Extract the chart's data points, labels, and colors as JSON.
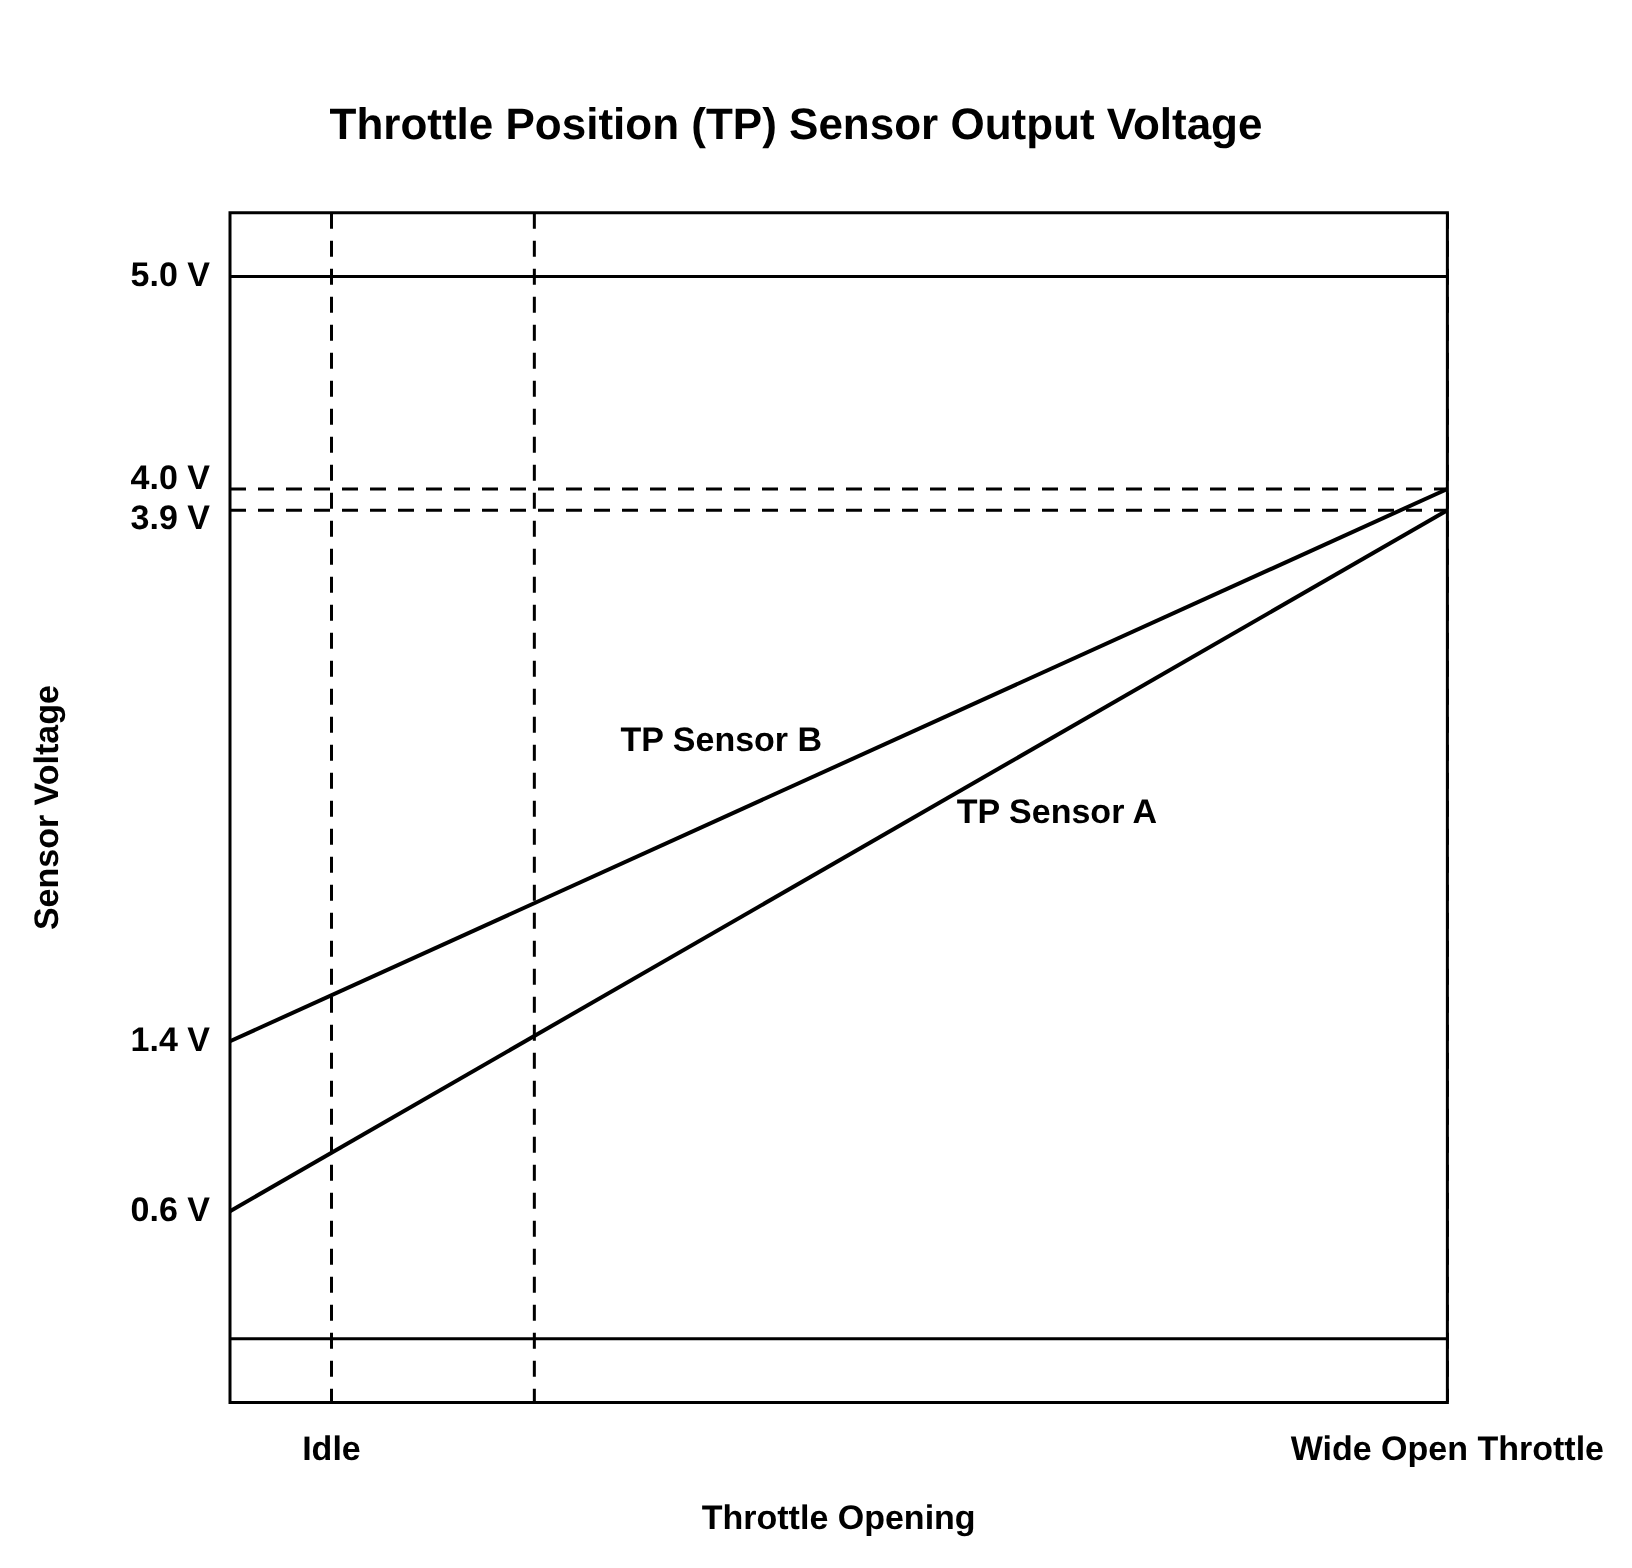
{
  "chart_data": {
    "type": "line",
    "title": "Throttle Position (TP) Sensor Output Voltage",
    "xlabel": "Throttle Opening",
    "ylabel": "Sensor Voltage",
    "categories": [
      null,
      "Idle",
      null,
      null,
      null,
      null,
      null,
      null,
      null,
      null,
      null,
      null,
      "Wide Open Throttle"
    ],
    "series": [
      {
        "name": "TP Sensor B",
        "color": "#000000",
        "values": [
          1.4,
          null,
          null,
          null,
          null,
          null,
          null,
          null,
          null,
          null,
          null,
          null,
          4.0
        ]
      },
      {
        "name": "TP Sensor A",
        "color": "#000000",
        "values": [
          0.6,
          null,
          null,
          null,
          null,
          null,
          null,
          null,
          null,
          null,
          null,
          null,
          3.9
        ]
      }
    ],
    "ylim": [
      -0.3,
      5.3
    ],
    "yticks": [
      {
        "value": 0.6,
        "label": "0.6 V"
      },
      {
        "value": 1.4,
        "label": "1.4 V"
      },
      {
        "value": 3.9,
        "label": "3.9 V"
      },
      {
        "value": 4.0,
        "label": "4.0 V"
      },
      {
        "value": 5.0,
        "label": "5.0 V"
      }
    ],
    "ref_lines": [
      {
        "axis": "y",
        "value": 4.0,
        "line_style": "dashed",
        "color": "#000000"
      },
      {
        "axis": "y",
        "value": 3.9,
        "line_style": "dashed",
        "color": "#000000"
      },
      {
        "axis": "y",
        "value": 5.0,
        "line_style": "solid",
        "color": "#000000"
      },
      {
        "axis": "y",
        "value": 0,
        "line_style": "solid",
        "color": "#000000"
      }
    ],
    "grid": "x",
    "legend": false,
    "marker": "none",
    "line_style": "solid"
  }
}
